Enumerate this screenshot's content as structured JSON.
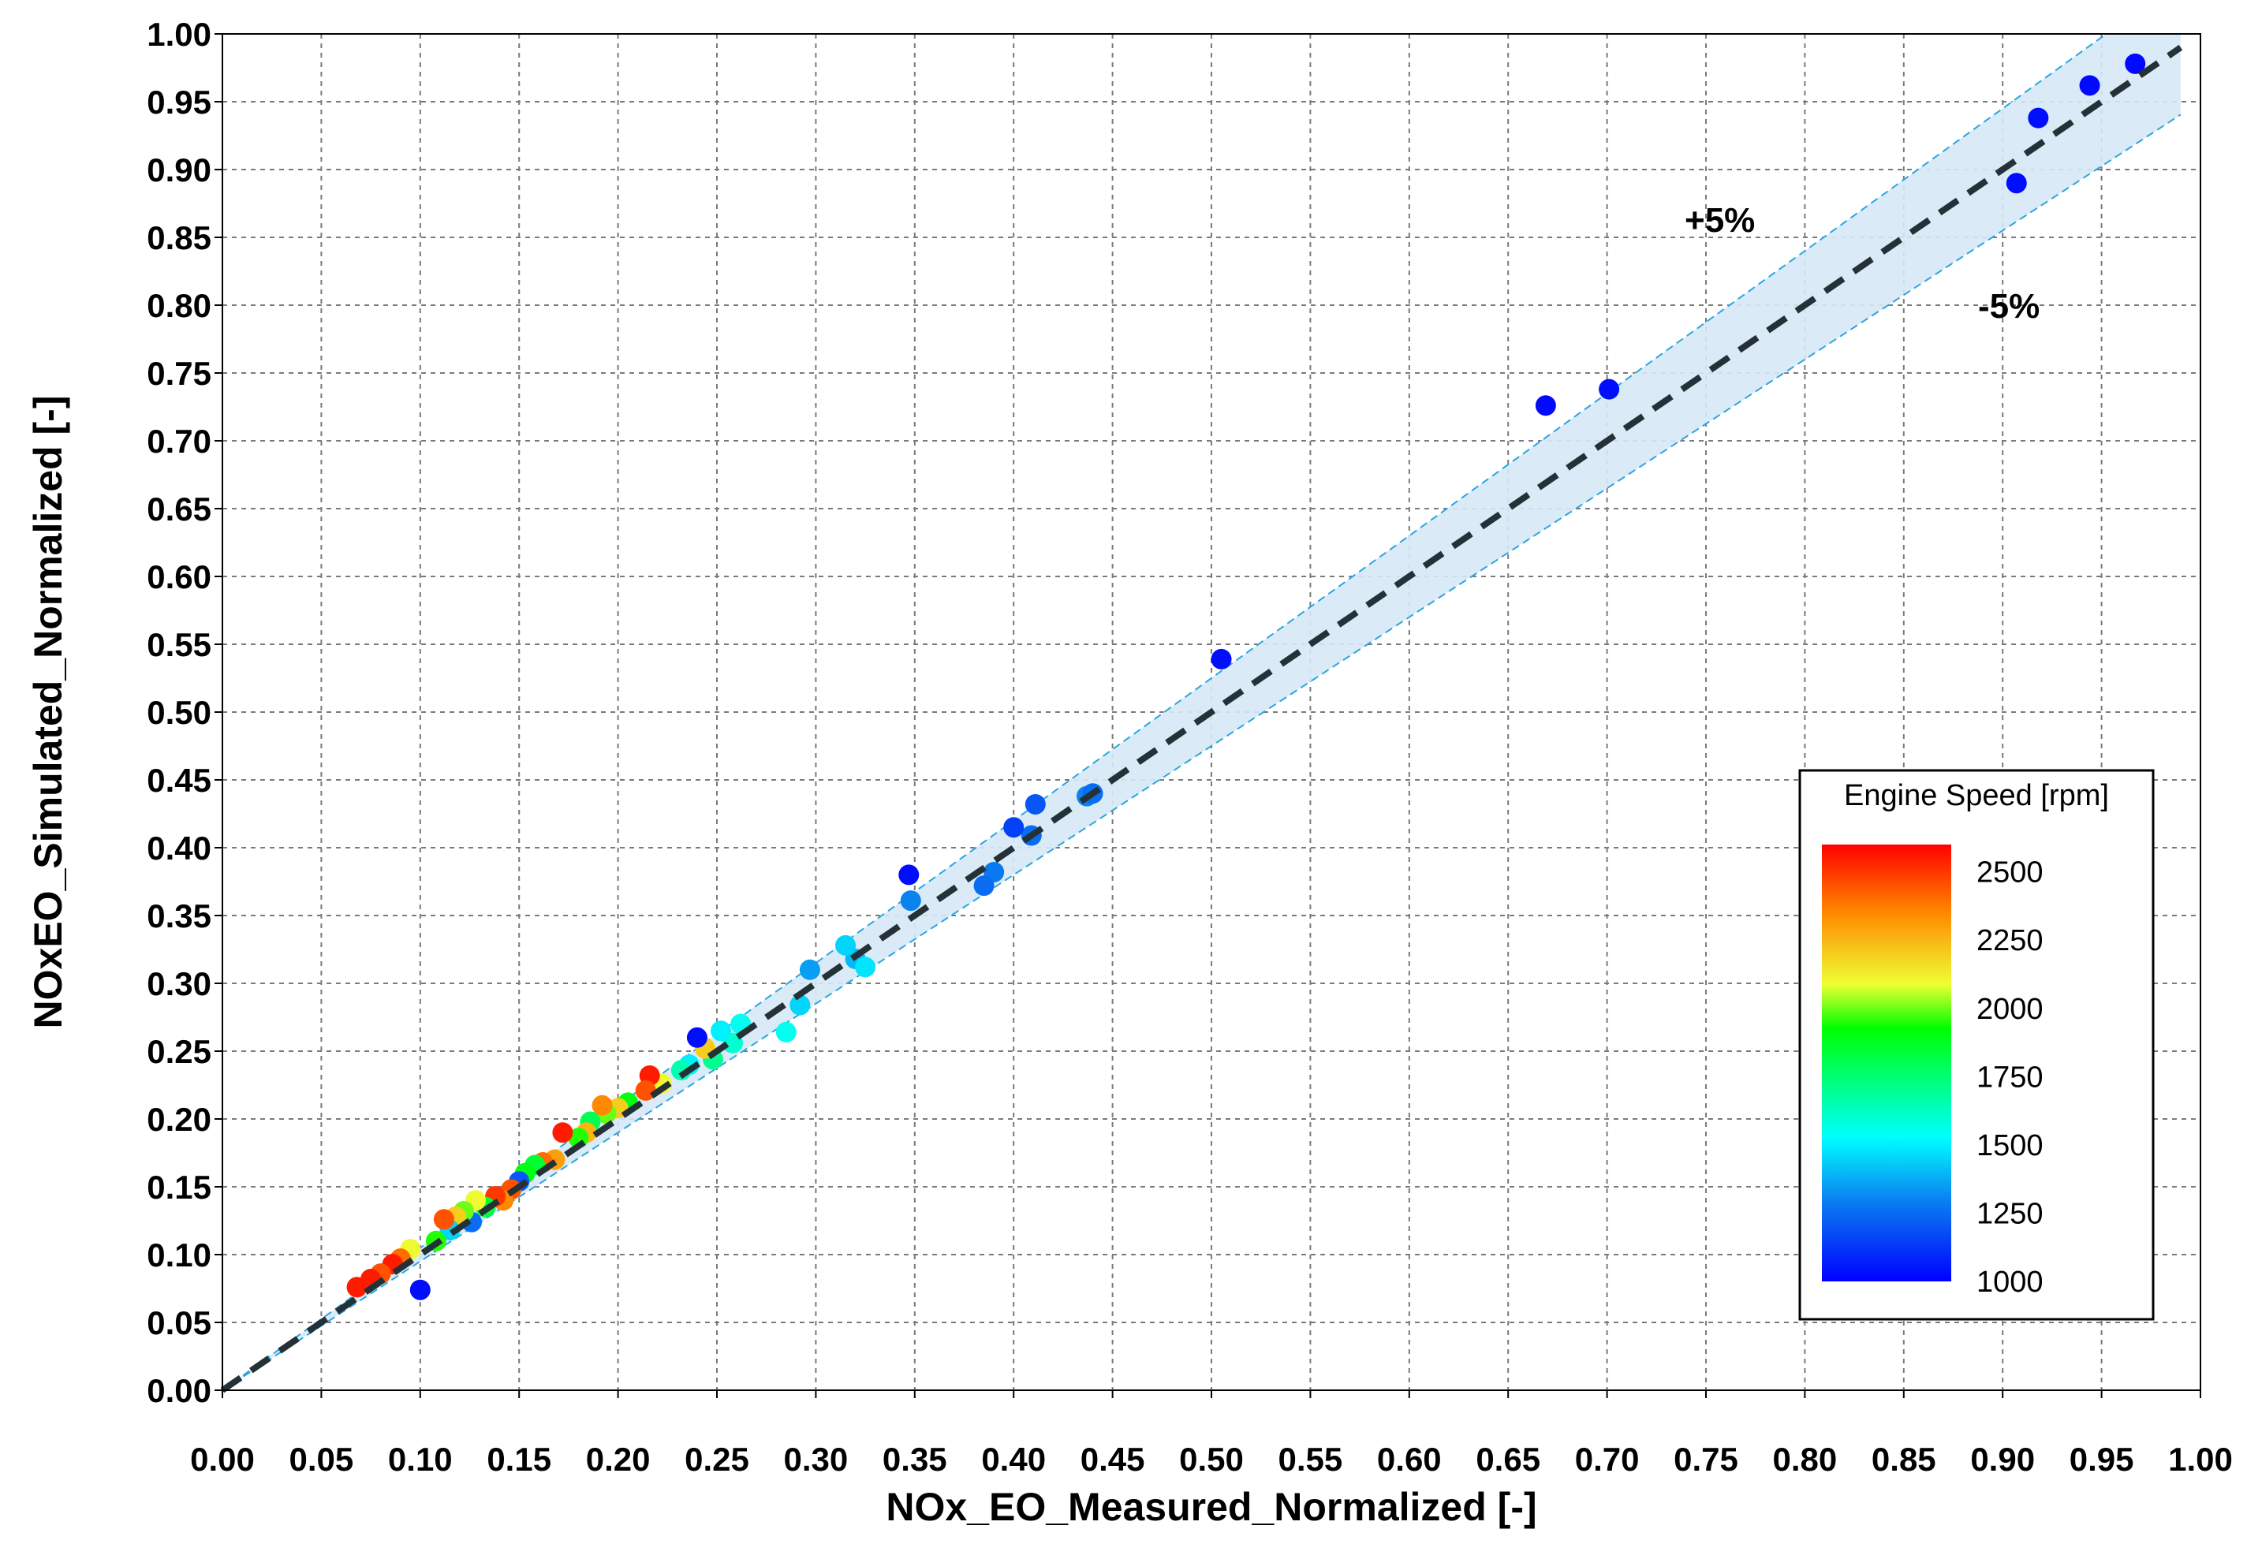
{
  "chart_data": {
    "type": "scatter",
    "title": "",
    "xlabel": "NOx_EO_Measured_Normalized [-]",
    "ylabel": "NOxEO_Simulated_Normalized [-]",
    "xlim": [
      0,
      1
    ],
    "ylim": [
      0,
      1
    ],
    "x_ticks": [
      "0.00",
      "0.05",
      "0.10",
      "0.15",
      "0.20",
      "0.25",
      "0.30",
      "0.35",
      "0.40",
      "0.45",
      "0.50",
      "0.55",
      "0.60",
      "0.65",
      "0.70",
      "0.75",
      "0.80",
      "0.85",
      "0.90",
      "0.95",
      "1.00"
    ],
    "y_ticks": [
      "0.00",
      "0.05",
      "0.10",
      "0.15",
      "0.20",
      "0.25",
      "0.30",
      "0.35",
      "0.40",
      "0.45",
      "0.50",
      "0.55",
      "0.60",
      "0.65",
      "0.70",
      "0.75",
      "0.80",
      "0.85",
      "0.90",
      "0.95",
      "1.00"
    ],
    "grid": true,
    "reference_line": {
      "style": "dashed",
      "color": "#243238",
      "from": [
        0,
        0
      ],
      "to": [
        0.99,
        0.99
      ]
    },
    "band": {
      "upper_label": "+5%",
      "lower_label": "-5%",
      "upper_factor": 1.05,
      "lower_factor": 0.95,
      "x_max": 0.99,
      "fill": "#d6e8f6",
      "edge": "#2aa6e0"
    },
    "colorbar": {
      "title": "Engine Speed [rpm]",
      "min": 1000,
      "max": 2600,
      "ticks": [
        "2500",
        "2250",
        "2000",
        "1750",
        "1500",
        "1250",
        "1000"
      ],
      "placement": "bottom-right"
    },
    "points": [
      {
        "x": 0.967,
        "y": 0.978,
        "rpm": 1020
      },
      {
        "x": 0.944,
        "y": 0.962,
        "rpm": 1020
      },
      {
        "x": 0.918,
        "y": 0.938,
        "rpm": 1030
      },
      {
        "x": 0.907,
        "y": 0.89,
        "rpm": 1030
      },
      {
        "x": 0.701,
        "y": 0.738,
        "rpm": 1030
      },
      {
        "x": 0.669,
        "y": 0.726,
        "rpm": 1020
      },
      {
        "x": 0.505,
        "y": 0.539,
        "rpm": 1030
      },
      {
        "x": 0.437,
        "y": 0.438,
        "rpm": 1300
      },
      {
        "x": 0.44,
        "y": 0.44,
        "rpm": 1250
      },
      {
        "x": 0.411,
        "y": 0.432,
        "rpm": 1200
      },
      {
        "x": 0.409,
        "y": 0.409,
        "rpm": 1250
      },
      {
        "x": 0.4,
        "y": 0.415,
        "rpm": 1150
      },
      {
        "x": 0.39,
        "y": 0.382,
        "rpm": 1280
      },
      {
        "x": 0.385,
        "y": 0.372,
        "rpm": 1250
      },
      {
        "x": 0.347,
        "y": 0.38,
        "rpm": 1030
      },
      {
        "x": 0.348,
        "y": 0.361,
        "rpm": 1300
      },
      {
        "x": 0.32,
        "y": 0.318,
        "rpm": 1400
      },
      {
        "x": 0.315,
        "y": 0.328,
        "rpm": 1450
      },
      {
        "x": 0.325,
        "y": 0.312,
        "rpm": 1480
      },
      {
        "x": 0.297,
        "y": 0.31,
        "rpm": 1350
      },
      {
        "x": 0.292,
        "y": 0.284,
        "rpm": 1450
      },
      {
        "x": 0.285,
        "y": 0.264,
        "rpm": 1550
      },
      {
        "x": 0.262,
        "y": 0.27,
        "rpm": 1550
      },
      {
        "x": 0.258,
        "y": 0.256,
        "rpm": 1600
      },
      {
        "x": 0.252,
        "y": 0.265,
        "rpm": 1500
      },
      {
        "x": 0.248,
        "y": 0.244,
        "rpm": 1700
      },
      {
        "x": 0.244,
        "y": 0.252,
        "rpm": 2200
      },
      {
        "x": 0.24,
        "y": 0.26,
        "rpm": 1030
      },
      {
        "x": 0.236,
        "y": 0.24,
        "rpm": 1500
      },
      {
        "x": 0.232,
        "y": 0.236,
        "rpm": 1650
      },
      {
        "x": 0.222,
        "y": 0.226,
        "rpm": 2100
      },
      {
        "x": 0.216,
        "y": 0.232,
        "rpm": 2550
      },
      {
        "x": 0.214,
        "y": 0.221,
        "rpm": 2450
      },
      {
        "x": 0.205,
        "y": 0.212,
        "rpm": 1900
      },
      {
        "x": 0.2,
        "y": 0.208,
        "rpm": 2200
      },
      {
        "x": 0.194,
        "y": 0.204,
        "rpm": 2000
      },
      {
        "x": 0.192,
        "y": 0.21,
        "rpm": 2350
      },
      {
        "x": 0.186,
        "y": 0.198,
        "rpm": 1800
      },
      {
        "x": 0.184,
        "y": 0.19,
        "rpm": 2250
      },
      {
        "x": 0.18,
        "y": 0.186,
        "rpm": 1950
      },
      {
        "x": 0.172,
        "y": 0.19,
        "rpm": 2550
      },
      {
        "x": 0.168,
        "y": 0.17,
        "rpm": 2300
      },
      {
        "x": 0.162,
        "y": 0.168,
        "rpm": 2400
      },
      {
        "x": 0.158,
        "y": 0.166,
        "rpm": 1850
      },
      {
        "x": 0.153,
        "y": 0.16,
        "rpm": 1900
      },
      {
        "x": 0.15,
        "y": 0.154,
        "rpm": 1200
      },
      {
        "x": 0.146,
        "y": 0.148,
        "rpm": 2450
      },
      {
        "x": 0.142,
        "y": 0.14,
        "rpm": 2350
      },
      {
        "x": 0.138,
        "y": 0.143,
        "rpm": 2500
      },
      {
        "x": 0.133,
        "y": 0.135,
        "rpm": 1850
      },
      {
        "x": 0.128,
        "y": 0.14,
        "rpm": 2100
      },
      {
        "x": 0.126,
        "y": 0.124,
        "rpm": 1250
      },
      {
        "x": 0.122,
        "y": 0.132,
        "rpm": 2000
      },
      {
        "x": 0.118,
        "y": 0.128,
        "rpm": 2200
      },
      {
        "x": 0.115,
        "y": 0.118,
        "rpm": 1450
      },
      {
        "x": 0.112,
        "y": 0.126,
        "rpm": 2450
      },
      {
        "x": 0.108,
        "y": 0.11,
        "rpm": 1950
      },
      {
        "x": 0.1,
        "y": 0.074,
        "rpm": 1030
      },
      {
        "x": 0.095,
        "y": 0.104,
        "rpm": 2100
      },
      {
        "x": 0.09,
        "y": 0.097,
        "rpm": 2400
      },
      {
        "x": 0.086,
        "y": 0.093,
        "rpm": 2550
      },
      {
        "x": 0.08,
        "y": 0.086,
        "rpm": 2450
      },
      {
        "x": 0.075,
        "y": 0.082,
        "rpm": 2550
      },
      {
        "x": 0.068,
        "y": 0.076,
        "rpm": 2550
      }
    ]
  }
}
